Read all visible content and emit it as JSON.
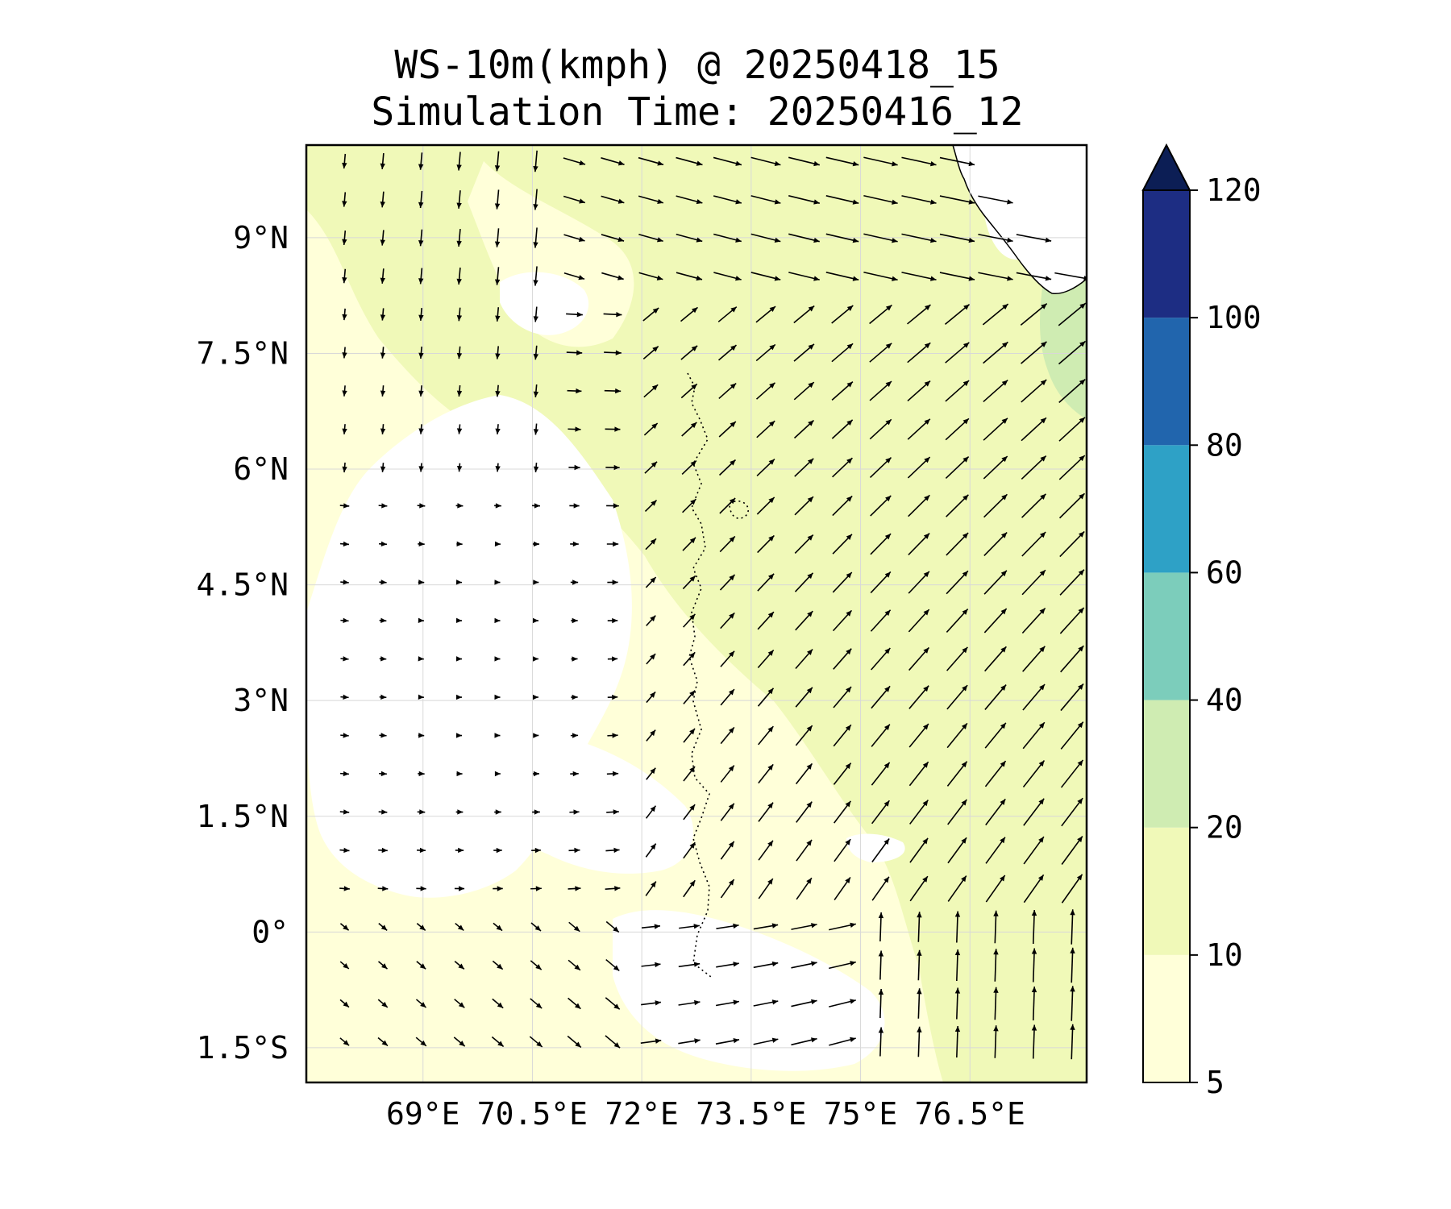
{
  "title": "WS-10m(kmph) @ 20250418_15",
  "subtitle": "Simulation Time: 20250416_12",
  "map": {
    "lon_range": [
      67.4,
      78.1
    ],
    "lat_range": [
      -1.95,
      10.2
    ],
    "lon_ticks": [
      {
        "value": 69.0,
        "label": "69°E"
      },
      {
        "value": 70.5,
        "label": "70.5°E"
      },
      {
        "value": 72.0,
        "label": "72°E"
      },
      {
        "value": 73.5,
        "label": "73.5°E"
      },
      {
        "value": 75.0,
        "label": "75°E"
      },
      {
        "value": 76.5,
        "label": "76.5°E"
      }
    ],
    "lat_ticks": [
      {
        "value": 9.0,
        "label": "9°N"
      },
      {
        "value": 7.5,
        "label": "7.5°N"
      },
      {
        "value": 6.0,
        "label": "6°N"
      },
      {
        "value": 4.5,
        "label": "4.5°N"
      },
      {
        "value": 3.0,
        "label": "3°N"
      },
      {
        "value": 1.5,
        "label": "1.5°N"
      },
      {
        "value": 0.0,
        "label": "0°"
      },
      {
        "value": -1.5,
        "label": "1.5°S"
      }
    ],
    "grid": true
  },
  "colorbar": {
    "levels": [
      5,
      10,
      20,
      40,
      60,
      80,
      100,
      120
    ],
    "labels": [
      "5",
      "10",
      "20",
      "40",
      "60",
      "80",
      "100",
      "120"
    ],
    "colors": [
      "#ffffd9",
      "#f0f9b8",
      "#cfecb2",
      "#7ccdbb",
      "#2ea1c6",
      "#2165ad",
      "#1d2d83"
    ],
    "extend_color": "#0c1e55",
    "extend": "max"
  },
  "colors": {
    "under": "#ffffff",
    "grid": "#d8d8d8",
    "coast": "#000000"
  }
}
